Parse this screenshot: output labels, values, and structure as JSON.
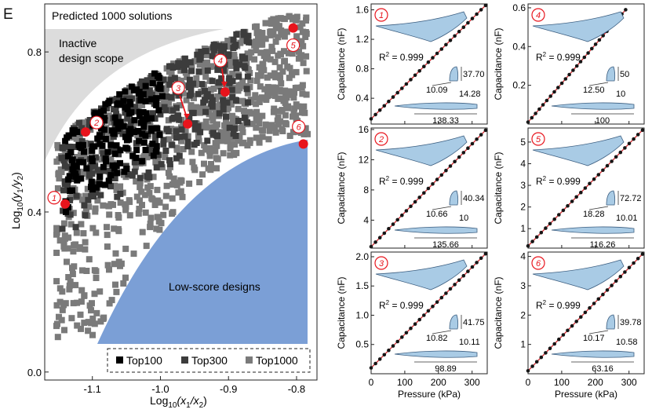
{
  "panel_letter": "E",
  "chart_data": [
    {
      "type": "scatter",
      "title": "Predicted 1000 solutions",
      "xlabel_main": "Log",
      "xlabel_sub": "10",
      "xlabel_expr": "(x",
      "xlabel_sub1": "1",
      "xlabel_mid": "/x",
      "xlabel_sub2": "2",
      "xlabel_end": ")",
      "ylabel_main": "Log",
      "ylabel_sub": "10",
      "ylabel_expr": "(y",
      "ylabel_sub1": "1",
      "ylabel_mid": "/y",
      "ylabel_sub2": "2",
      "ylabel_end": ")",
      "xlim": [
        -1.17,
        -0.77
      ],
      "ylim": [
        -0.02,
        0.92
      ],
      "xticks": [
        -1.1,
        -1.0,
        -0.9,
        -0.8
      ],
      "yticks": [
        0.0,
        0.4,
        0.8
      ],
      "xtick_labels": [
        "-1.1",
        "-1.0",
        "-0.9",
        "-0.8"
      ],
      "ytick_labels": [
        "0.0",
        "0.4",
        "0.8"
      ],
      "regions": {
        "inactive_label_1": "Inactive",
        "inactive_label_2": "design scope",
        "low_score_label": "Low-score designs",
        "inactive_color": "#dcdcdc",
        "low_score_color": "#7b9fd6"
      },
      "legend": {
        "placement": "bottom-right",
        "items": [
          {
            "label": "Top100",
            "color": "#000000"
          },
          {
            "label": "Top300",
            "color": "#3c3c3c"
          },
          {
            "label": "Top1000",
            "color": "#7a7a7a"
          }
        ]
      },
      "highlighted_points": [
        {
          "id": "1",
          "x": -1.14,
          "y": 0.42
        },
        {
          "id": "2",
          "x": -1.11,
          "y": 0.6
        },
        {
          "id": "3",
          "x": -0.96,
          "y": 0.62
        },
        {
          "id": "4",
          "x": -0.905,
          "y": 0.7
        },
        {
          "id": "5",
          "x": -0.805,
          "y": 0.86
        },
        {
          "id": "6",
          "x": -0.79,
          "y": 0.57
        }
      ],
      "highlight_color": "#e8141c"
    },
    {
      "type": "line",
      "id": "1",
      "xlabel": "Pressure (kPa)",
      "ylabel": "Capacitance (nF)",
      "xlim": [
        0,
        345
      ],
      "ylim": [
        0.05,
        1.68
      ],
      "xticks": [
        0,
        100,
        200,
        300
      ],
      "yticks": [
        0.4,
        0.8,
        1.2,
        1.6
      ],
      "ytick_labels": [
        "0.4",
        "0.8",
        "1.2",
        "1.6"
      ],
      "fit": {
        "x0": 0,
        "y0": 0.12,
        "x1": 340,
        "y1": 1.66
      },
      "r2": "R",
      "r2_sup": "2",
      "r2_value": " = 0.999",
      "dims": [
        "37.70",
        "10.09",
        "14.28",
        "138.33"
      ]
    },
    {
      "type": "line",
      "id": "4",
      "xlabel": "Pressure (kPa)",
      "ylabel": "Capacitance (nF)",
      "xlim": [
        0,
        345
      ],
      "ylim": [
        0.0,
        0.62
      ],
      "xticks": [
        0,
        100,
        200,
        300
      ],
      "yticks": [
        0.2,
        0.4,
        0.6
      ],
      "ytick_labels": [
        "0.2",
        "0.4",
        "0.6"
      ],
      "fit": {
        "x0": 0,
        "y0": 0.01,
        "x1": 290,
        "y1": 0.59
      },
      "r2": "R",
      "r2_sup": "2",
      "r2_value": " = 0.999",
      "dims": [
        "50",
        "12.50",
        "10",
        "100"
      ]
    },
    {
      "type": "line",
      "id": "2",
      "xlabel": "Pressure (kPa)",
      "ylabel": "Capacitance (nF)",
      "xlim": [
        0,
        345
      ],
      "ylim": [
        0.3,
        16.2
      ],
      "xticks": [
        0,
        100,
        200,
        300
      ],
      "yticks": [
        4,
        8,
        12,
        16
      ],
      "ytick_labels": [
        "4",
        "8",
        "12",
        "16"
      ],
      "fit": {
        "x0": 0,
        "y0": 0.5,
        "x1": 340,
        "y1": 15.9
      },
      "r2": "R",
      "r2_sup": "2",
      "r2_value": " = 0.999",
      "dims": [
        "40.34",
        "10.66",
        "10",
        "135.66"
      ]
    },
    {
      "type": "line",
      "id": "5",
      "xlabel": "Pressure (kPa)",
      "ylabel": "Capacitance (nF)",
      "xlim": [
        0,
        345
      ],
      "ylim": [
        0.1,
        5.65
      ],
      "xticks": [
        0,
        100,
        200,
        300
      ],
      "yticks": [
        1,
        2,
        3,
        4,
        5
      ],
      "ytick_labels": [
        "1",
        "2",
        "3",
        "4",
        "5"
      ],
      "fit": {
        "x0": 0,
        "y0": 0.2,
        "x1": 340,
        "y1": 5.55
      },
      "r2": "R",
      "r2_sup": "2",
      "r2_value": " = 0.999",
      "dims": [
        "72.72",
        "18.28",
        "10.01",
        "116.26"
      ]
    },
    {
      "type": "line",
      "id": "3",
      "xlabel": "Pressure (kPa)",
      "ylabel": "Capacitance (nF)",
      "xlim": [
        0,
        345
      ],
      "ylim": [
        0.0,
        2.08
      ],
      "xticks": [
        0,
        100,
        200,
        300
      ],
      "yticks": [
        0.5,
        1.0,
        1.5,
        2.0
      ],
      "ytick_labels": [
        "0.5",
        "1.0",
        "1.5",
        "2.0"
      ],
      "xtick_labels": [
        "0",
        "100",
        "200",
        "300"
      ],
      "fit": {
        "x0": 0,
        "y0": 0.1,
        "x1": 340,
        "y1": 2.05
      },
      "r2": "R",
      "r2_sup": "2",
      "r2_value": " = 0.999",
      "dims": [
        "41.75",
        "10.82",
        "10.11",
        "98.89"
      ]
    },
    {
      "type": "line",
      "id": "6",
      "xlabel": "Pressure (kPa)",
      "ylabel": "Capacitance (nF)",
      "xlim": [
        0,
        345
      ],
      "ylim": [
        0.0,
        4.15
      ],
      "xticks": [
        0,
        100,
        200,
        300
      ],
      "yticks": [
        1,
        2,
        3,
        4
      ],
      "ytick_labels": [
        "1",
        "2",
        "3",
        "4"
      ],
      "xtick_labels": [
        "0",
        "100",
        "200",
        "300"
      ],
      "fit": {
        "x0": 0,
        "y0": 0.1,
        "x1": 340,
        "y1": 4.08
      },
      "r2": "R",
      "r2_sup": "2",
      "r2_value": " = 0.999",
      "dims": [
        "39.78",
        "10.17",
        "10.58",
        "63.16"
      ]
    }
  ]
}
